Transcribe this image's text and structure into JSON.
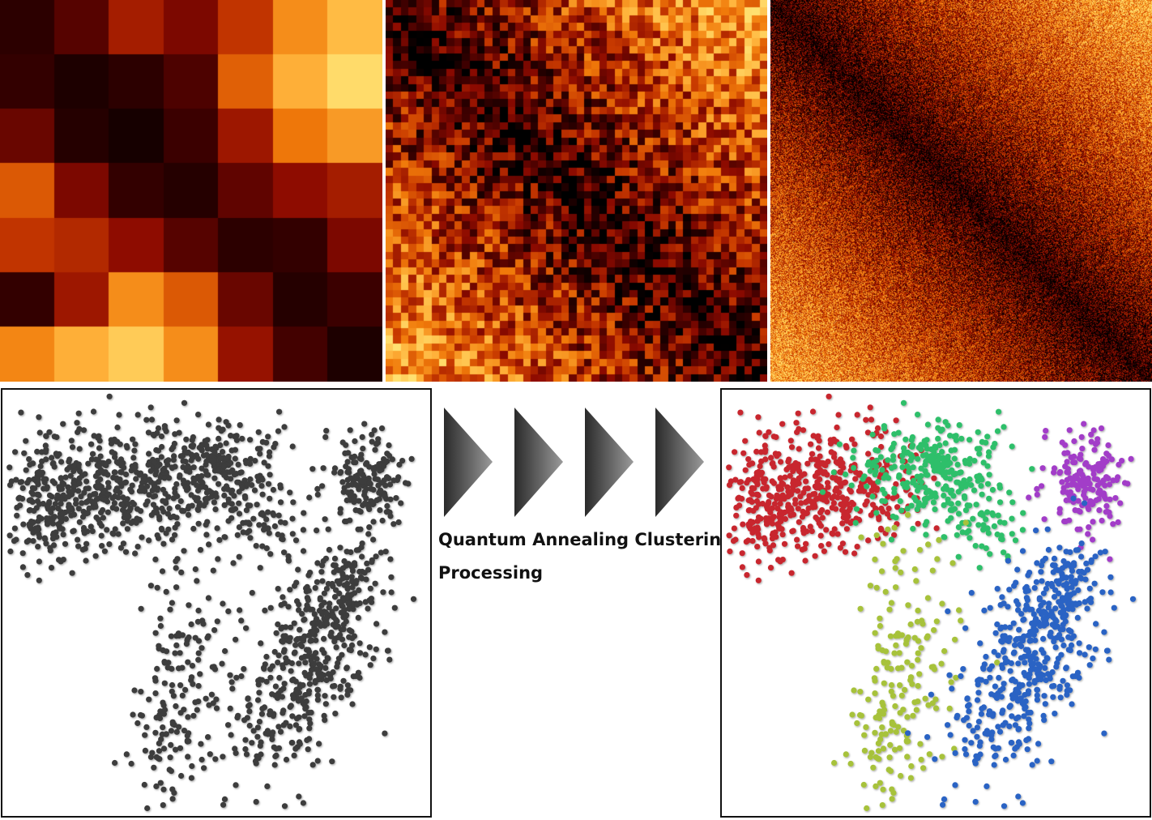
{
  "caption": {
    "line1": "Quantum Annealing Clustering",
    "line2": "Processing"
  },
  "heatmaps": [
    {
      "name": "heatmap-7x7",
      "grid_size": 7,
      "values": [
        [
          0.12,
          0.22,
          0.4,
          0.3,
          0.48,
          0.72,
          0.86
        ],
        [
          0.14,
          0.08,
          0.12,
          0.2,
          0.6,
          0.82,
          0.98
        ],
        [
          0.26,
          0.1,
          0.06,
          0.16,
          0.38,
          0.66,
          0.76
        ],
        [
          0.58,
          0.3,
          0.14,
          0.1,
          0.24,
          0.34,
          0.4
        ],
        [
          0.48,
          0.44,
          0.34,
          0.22,
          0.12,
          0.14,
          0.3
        ],
        [
          0.14,
          0.38,
          0.72,
          0.58,
          0.26,
          0.1,
          0.16
        ],
        [
          0.7,
          0.82,
          0.92,
          0.72,
          0.36,
          0.18,
          0.08
        ]
      ]
    },
    {
      "name": "heatmap-50x50",
      "grid_size": 50
    },
    {
      "name": "heatmap-500x500",
      "grid_size": 500
    }
  ],
  "colormap": [
    "#000000",
    "#3d0000",
    "#8c0a00",
    "#c83a00",
    "#f07a0a",
    "#ffb43c",
    "#ffe070"
  ],
  "clusters": [
    {
      "name": "red",
      "color": "#c8262e"
    },
    {
      "name": "green",
      "color": "#2fbf6a"
    },
    {
      "name": "purple",
      "color": "#a23ec8"
    },
    {
      "name": "olive",
      "color": "#a7c23a"
    },
    {
      "name": "blue",
      "color": "#2b63c4"
    }
  ],
  "unclustered_color": "#3c3c3c",
  "arrow_count": 4
}
